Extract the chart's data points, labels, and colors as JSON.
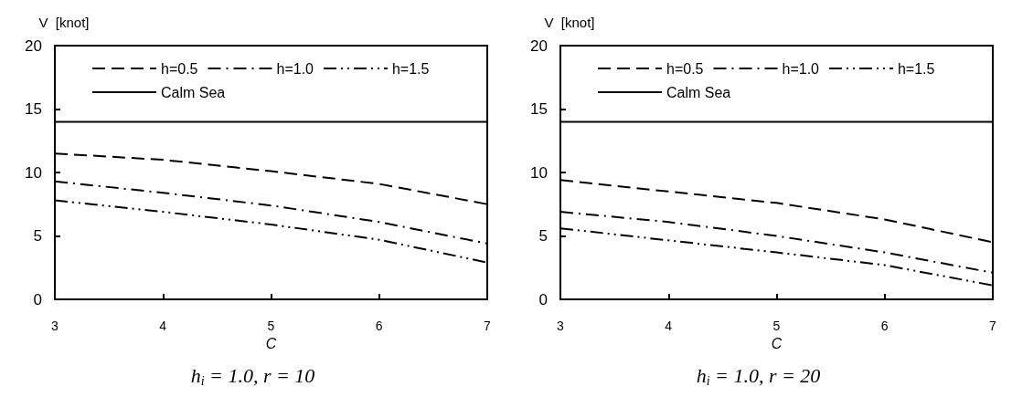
{
  "chart_data": [
    {
      "type": "line",
      "title": "h$_{i}$ = 1.0, r = 10",
      "xlabel": "C",
      "ylabel": "V  [knot]",
      "x": [
        3,
        4,
        5,
        6,
        7
      ],
      "xlim": [
        3,
        7
      ],
      "xticks": [
        3,
        4,
        5,
        6,
        7
      ],
      "ylim": [
        0,
        20
      ],
      "yticks": [
        0,
        5,
        10,
        15,
        20
      ],
      "grid": false,
      "legend": "top",
      "marker": "none",
      "series": [
        {
          "name": "h=0.5",
          "color": "#000000",
          "line_style": "dashed",
          "values": [
            11.5,
            11.0,
            10.1,
            9.1,
            7.5
          ]
        },
        {
          "name": "h=1.0",
          "color": "#000000",
          "line_style": "dashdot",
          "values": [
            9.3,
            8.4,
            7.4,
            6.1,
            4.4
          ]
        },
        {
          "name": "h=1.5",
          "color": "#000000",
          "line_style": "dashdotdot",
          "values": [
            7.8,
            6.9,
            5.9,
            4.7,
            2.9
          ]
        },
        {
          "name": "Calm Sea",
          "color": "#000000",
          "line_style": "solid",
          "values": [
            14,
            14,
            14,
            14,
            14
          ]
        }
      ]
    },
    {
      "type": "line",
      "title": "h$_{i}$ = 1.0, r = 20",
      "xlabel": "C",
      "ylabel": "V  [knot]",
      "x": [
        3,
        4,
        5,
        6,
        7
      ],
      "xlim": [
        3,
        7
      ],
      "xticks": [
        3,
        4,
        5,
        6,
        7
      ],
      "ylim": [
        0,
        20
      ],
      "yticks": [
        0,
        5,
        10,
        15,
        20
      ],
      "grid": false,
      "legend": "top",
      "marker": "none",
      "series": [
        {
          "name": "h=0.5",
          "color": "#000000",
          "line_style": "dashed",
          "values": [
            9.4,
            8.5,
            7.6,
            6.3,
            4.5
          ]
        },
        {
          "name": "h=1.0",
          "color": "#000000",
          "line_style": "dashdot",
          "values": [
            6.9,
            6.1,
            5.0,
            3.7,
            2.1
          ]
        },
        {
          "name": "h=1.5",
          "color": "#000000",
          "line_style": "dashdotdot",
          "values": [
            5.6,
            4.65,
            3.7,
            2.7,
            1.1
          ]
        },
        {
          "name": "Calm Sea",
          "color": "#000000",
          "line_style": "solid",
          "values": [
            14,
            14,
            14,
            14,
            14
          ]
        }
      ]
    }
  ]
}
